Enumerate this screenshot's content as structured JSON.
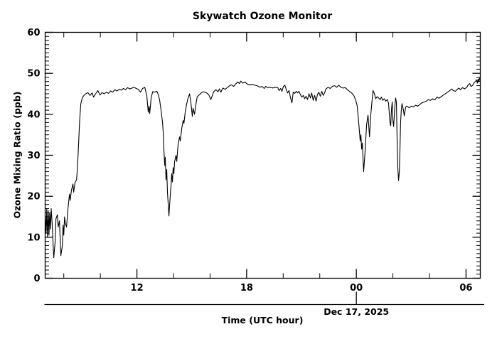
{
  "chart_data": {
    "type": "line",
    "title": "Skywatch Ozone Monitor",
    "xlabel": "Time (UTC hour)",
    "ylabel": "Ozone Mixing Ratio (ppb)",
    "date_label": "Dec 17, 2025",
    "background": "#ffffff",
    "line_color": "#000000",
    "grid": false,
    "x_axis": {
      "min": 6.98,
      "max": 30.78,
      "major_ticks": [
        {
          "value": 12,
          "label": "12"
        },
        {
          "value": 18,
          "label": "18"
        },
        {
          "value": 24,
          "label": "00"
        },
        {
          "value": 30,
          "label": "06"
        }
      ],
      "minor_tick_values": [
        8,
        10,
        14,
        16,
        20,
        22,
        26,
        28
      ],
      "date_tick_value": 24
    },
    "y_axis": {
      "min": 0,
      "max": 60,
      "major_tick_step": 10,
      "minor_tick_step": 1,
      "tick_labels": [
        "0",
        "10",
        "20",
        "30",
        "40",
        "50",
        "60"
      ]
    },
    "series": [
      {
        "name": "ozone_mixing_ratio_ppb",
        "points": [
          [
            6.98,
            15.5
          ],
          [
            7.03,
            11.0
          ],
          [
            7.07,
            17.0
          ],
          [
            7.11,
            10.0
          ],
          [
            7.15,
            16.5
          ],
          [
            7.19,
            10.5
          ],
          [
            7.23,
            16.0
          ],
          [
            7.27,
            12.0
          ],
          [
            7.31,
            17.0
          ],
          [
            7.36,
            13.5
          ],
          [
            7.45,
            5.0
          ],
          [
            7.53,
            9.0
          ],
          [
            7.57,
            14.5
          ],
          [
            7.65,
            15.5
          ],
          [
            7.69,
            12.5
          ],
          [
            7.76,
            14.0
          ],
          [
            7.84,
            5.5
          ],
          [
            7.92,
            8.0
          ],
          [
            7.96,
            13.0
          ],
          [
            8.0,
            10.5
          ],
          [
            8.04,
            15.0
          ],
          [
            8.08,
            13.5
          ],
          [
            8.15,
            12.5
          ],
          [
            8.23,
            17.0
          ],
          [
            8.31,
            20.5
          ],
          [
            8.35,
            19.0
          ],
          [
            8.42,
            21.5
          ],
          [
            8.5,
            23.0
          ],
          [
            8.54,
            21.0
          ],
          [
            8.62,
            23.5
          ],
          [
            8.7,
            24.0
          ],
          [
            8.73,
            26.0
          ],
          [
            8.77,
            29.0
          ],
          [
            8.81,
            33.0
          ],
          [
            8.85,
            37.0
          ],
          [
            8.89,
            40.0
          ],
          [
            8.93,
            42.5
          ],
          [
            9.01,
            44.0
          ],
          [
            9.08,
            44.5
          ],
          [
            9.2,
            45.0
          ],
          [
            9.32,
            45.3
          ],
          [
            9.43,
            44.6
          ],
          [
            9.55,
            45.2
          ],
          [
            9.63,
            44.2
          ],
          [
            9.74,
            45.0
          ],
          [
            9.86,
            45.8
          ],
          [
            9.98,
            44.7
          ],
          [
            10.09,
            45.3
          ],
          [
            10.21,
            45.0
          ],
          [
            10.33,
            45.4
          ],
          [
            10.44,
            45.1
          ],
          [
            10.56,
            45.7
          ],
          [
            10.68,
            45.4
          ],
          [
            10.79,
            46.0
          ],
          [
            10.91,
            45.7
          ],
          [
            11.03,
            46.1
          ],
          [
            11.14,
            45.9
          ],
          [
            11.26,
            46.3
          ],
          [
            11.38,
            46.0
          ],
          [
            11.49,
            46.5
          ],
          [
            11.61,
            46.2
          ],
          [
            11.73,
            46.4
          ],
          [
            11.84,
            46.6
          ],
          [
            11.96,
            46.3
          ],
          [
            12.08,
            46.1
          ],
          [
            12.19,
            45.4
          ],
          [
            12.31,
            46.3
          ],
          [
            12.43,
            46.6
          ],
          [
            12.54,
            44.5
          ],
          [
            12.62,
            40.5
          ],
          [
            12.66,
            42.0
          ],
          [
            12.7,
            40.2
          ],
          [
            12.78,
            44.0
          ],
          [
            12.86,
            45.5
          ],
          [
            12.97,
            45.4
          ],
          [
            13.09,
            45.6
          ],
          [
            13.17,
            44.8
          ],
          [
            13.24,
            43.5
          ],
          [
            13.32,
            41.0
          ],
          [
            13.4,
            38.0
          ],
          [
            13.44,
            35.5
          ],
          [
            13.48,
            31.0
          ],
          [
            13.52,
            27.5
          ],
          [
            13.55,
            29.5
          ],
          [
            13.59,
            24.0
          ],
          [
            13.63,
            26.5
          ],
          [
            13.67,
            21.0
          ],
          [
            13.71,
            18.0
          ],
          [
            13.75,
            15.2
          ],
          [
            13.79,
            18.0
          ],
          [
            13.83,
            20.5
          ],
          [
            13.87,
            23.0
          ],
          [
            13.9,
            25.5
          ],
          [
            13.94,
            23.5
          ],
          [
            13.98,
            27.0
          ],
          [
            14.02,
            25.5
          ],
          [
            14.06,
            28.5
          ],
          [
            14.14,
            30.0
          ],
          [
            14.18,
            28.5
          ],
          [
            14.25,
            32.5
          ],
          [
            14.33,
            34.5
          ],
          [
            14.37,
            33.5
          ],
          [
            14.45,
            36.5
          ],
          [
            14.53,
            38.5
          ],
          [
            14.57,
            37.8
          ],
          [
            14.64,
            40.5
          ],
          [
            14.72,
            42.5
          ],
          [
            14.8,
            44.0
          ],
          [
            14.88,
            45.0
          ],
          [
            14.95,
            43.0
          ],
          [
            15.03,
            39.5
          ],
          [
            15.07,
            41.5
          ],
          [
            15.15,
            40.0
          ],
          [
            15.23,
            42.5
          ],
          [
            15.3,
            44.3
          ],
          [
            15.42,
            44.8
          ],
          [
            15.54,
            45.3
          ],
          [
            15.65,
            45.5
          ],
          [
            15.81,
            45.2
          ],
          [
            15.93,
            44.8
          ],
          [
            16.04,
            43.6
          ],
          [
            16.12,
            44.5
          ],
          [
            16.2,
            45.5
          ],
          [
            16.32,
            46.0
          ],
          [
            16.43,
            45.5
          ],
          [
            16.51,
            46.2
          ],
          [
            16.59,
            45.4
          ],
          [
            16.7,
            46.4
          ],
          [
            16.82,
            46.1
          ],
          [
            16.94,
            46.5
          ],
          [
            17.05,
            46.9
          ],
          [
            17.17,
            47.2
          ],
          [
            17.29,
            46.8
          ],
          [
            17.4,
            47.4
          ],
          [
            17.52,
            47.9
          ],
          [
            17.6,
            47.5
          ],
          [
            17.68,
            48.1
          ],
          [
            17.79,
            47.6
          ],
          [
            17.91,
            47.9
          ],
          [
            18.03,
            47.4
          ],
          [
            18.14,
            47.2
          ],
          [
            18.3,
            47.3
          ],
          [
            18.45,
            47.1
          ],
          [
            18.61,
            46.9
          ],
          [
            18.73,
            46.6
          ],
          [
            18.84,
            46.8
          ],
          [
            18.96,
            46.3
          ],
          [
            19.04,
            46.8
          ],
          [
            19.15,
            46.5
          ],
          [
            19.31,
            46.6
          ],
          [
            19.43,
            46.4
          ],
          [
            19.54,
            46.6
          ],
          [
            19.7,
            46.5
          ],
          [
            19.78,
            45.8
          ],
          [
            19.86,
            46.3
          ],
          [
            19.93,
            45.6
          ],
          [
            20.01,
            46.8
          ],
          [
            20.09,
            47.1
          ],
          [
            20.17,
            46.0
          ],
          [
            20.24,
            45.2
          ],
          [
            20.32,
            45.8
          ],
          [
            20.4,
            44.0
          ],
          [
            20.48,
            42.8
          ],
          [
            20.55,
            45.4
          ],
          [
            20.63,
            45.1
          ],
          [
            20.71,
            45.6
          ],
          [
            20.79,
            45.2
          ],
          [
            20.86,
            45.6
          ],
          [
            20.94,
            44.8
          ],
          [
            21.02,
            44.2
          ],
          [
            21.1,
            44.6
          ],
          [
            21.18,
            43.8
          ],
          [
            21.25,
            44.4
          ],
          [
            21.33,
            43.6
          ],
          [
            21.41,
            45.0
          ],
          [
            21.49,
            44.0
          ],
          [
            21.56,
            45.2
          ],
          [
            21.64,
            43.4
          ],
          [
            21.72,
            44.6
          ],
          [
            21.8,
            43.2
          ],
          [
            21.87,
            44.8
          ],
          [
            21.95,
            45.4
          ],
          [
            22.03,
            44.4
          ],
          [
            22.11,
            45.6
          ],
          [
            22.19,
            44.6
          ],
          [
            22.26,
            45.2
          ],
          [
            22.34,
            46.2
          ],
          [
            22.46,
            46.6
          ],
          [
            22.57,
            46.3
          ],
          [
            22.69,
            46.8
          ],
          [
            22.81,
            47.0
          ],
          [
            22.92,
            46.6
          ],
          [
            23.04,
            47.1
          ],
          [
            23.16,
            46.6
          ],
          [
            23.27,
            46.4
          ],
          [
            23.39,
            46.5
          ],
          [
            23.51,
            46.0
          ],
          [
            23.62,
            45.6
          ],
          [
            23.74,
            45.2
          ],
          [
            23.86,
            44.6
          ],
          [
            23.97,
            43.4
          ],
          [
            24.05,
            42.0
          ],
          [
            24.13,
            38.0
          ],
          [
            24.21,
            33.5
          ],
          [
            24.25,
            35.0
          ],
          [
            24.29,
            31.5
          ],
          [
            24.33,
            33.0
          ],
          [
            24.4,
            26.0
          ],
          [
            24.48,
            31.0
          ],
          [
            24.56,
            37.5
          ],
          [
            24.64,
            39.8
          ],
          [
            24.72,
            34.5
          ],
          [
            24.79,
            40.0
          ],
          [
            24.91,
            45.8
          ],
          [
            24.99,
            45.0
          ],
          [
            25.06,
            43.8
          ],
          [
            25.14,
            44.3
          ],
          [
            25.22,
            44.0
          ],
          [
            25.3,
            43.6
          ],
          [
            25.37,
            44.2
          ],
          [
            25.45,
            43.4
          ],
          [
            25.53,
            43.8
          ],
          [
            25.61,
            43.2
          ],
          [
            25.69,
            43.6
          ],
          [
            25.76,
            42.8
          ],
          [
            25.84,
            38.0
          ],
          [
            25.88,
            37.2
          ],
          [
            25.92,
            41.0
          ],
          [
            25.96,
            43.0
          ],
          [
            26.0,
            38.5
          ],
          [
            26.04,
            37.0
          ],
          [
            26.11,
            42.0
          ],
          [
            26.15,
            44.0
          ],
          [
            26.19,
            43.0
          ],
          [
            26.23,
            34.0
          ],
          [
            26.27,
            27.0
          ],
          [
            26.31,
            23.8
          ],
          [
            26.35,
            26.0
          ],
          [
            26.39,
            32.0
          ],
          [
            26.42,
            38.0
          ],
          [
            26.46,
            41.0
          ],
          [
            26.5,
            42.6
          ],
          [
            26.58,
            41.0
          ],
          [
            26.62,
            39.6
          ],
          [
            26.7,
            41.8
          ],
          [
            26.77,
            42.0
          ],
          [
            26.89,
            41.6
          ],
          [
            27.01,
            42.0
          ],
          [
            27.12,
            41.8
          ],
          [
            27.24,
            42.2
          ],
          [
            27.36,
            42.0
          ],
          [
            27.47,
            42.4
          ],
          [
            27.59,
            42.8
          ],
          [
            27.71,
            43.0
          ],
          [
            27.82,
            43.2
          ],
          [
            27.94,
            43.6
          ],
          [
            28.06,
            43.4
          ],
          [
            28.17,
            43.8
          ],
          [
            28.29,
            43.5
          ],
          [
            28.41,
            44.2
          ],
          [
            28.52,
            43.9
          ],
          [
            28.64,
            44.3
          ],
          [
            28.76,
            44.7
          ],
          [
            28.87,
            45.0
          ],
          [
            28.99,
            45.4
          ],
          [
            29.11,
            45.8
          ],
          [
            29.22,
            46.2
          ],
          [
            29.3,
            45.8
          ],
          [
            29.42,
            45.6
          ],
          [
            29.5,
            46.0
          ],
          [
            29.61,
            46.4
          ],
          [
            29.69,
            46.0
          ],
          [
            29.81,
            46.5
          ],
          [
            29.92,
            46.2
          ],
          [
            30.04,
            46.6
          ],
          [
            30.12,
            47.2
          ],
          [
            30.2,
            47.5
          ],
          [
            30.27,
            46.8
          ],
          [
            30.35,
            47.0
          ],
          [
            30.43,
            47.6
          ],
          [
            30.51,
            48.0
          ],
          [
            30.58,
            48.4
          ],
          [
            30.62,
            47.6
          ],
          [
            30.66,
            48.6
          ],
          [
            30.7,
            47.9
          ],
          [
            30.74,
            48.8
          ],
          [
            30.78,
            48.3
          ]
        ]
      }
    ]
  }
}
